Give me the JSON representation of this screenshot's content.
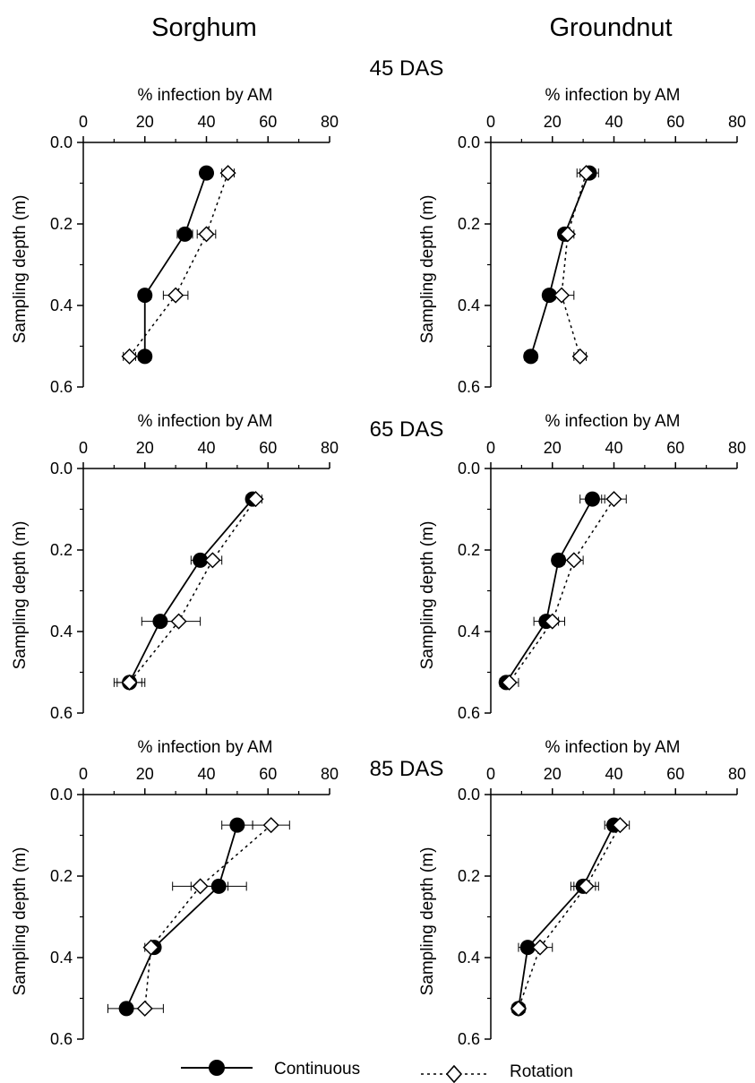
{
  "figure": {
    "col_titles": [
      "Sorghum",
      "Groundnut"
    ],
    "row_labels": [
      "45 DAS",
      "65 DAS",
      "85 DAS"
    ],
    "legend": {
      "continuous": "Continuous",
      "rotation": "Rotation"
    }
  },
  "chart_data": [
    {
      "type": "line",
      "crop": "Sorghum",
      "stage": "45 DAS",
      "xlabel": "% infection by AM",
      "ylabel": "Sampling depth (m)",
      "xlim": [
        0,
        80
      ],
      "ylim": [
        0.6,
        0.0
      ],
      "xticks": [
        "0",
        "20",
        "40",
        "60",
        "80"
      ],
      "yticks": [
        "0.0",
        "0.2",
        "0.4",
        "0.6"
      ],
      "depth": [
        0.075,
        0.225,
        0.375,
        0.525
      ],
      "series": [
        {
          "name": "Continuous",
          "x": [
            40,
            33,
            20,
            20
          ],
          "err": [
            1.5,
            2.5,
            2,
            2
          ]
        },
        {
          "name": "Rotation",
          "x": [
            47,
            40,
            30,
            15
          ],
          "err": [
            2,
            3,
            4,
            2
          ]
        }
      ]
    },
    {
      "type": "line",
      "crop": "Groundnut",
      "stage": "45 DAS",
      "xlabel": "% infection by AM",
      "ylabel": "Sampling depth (m)",
      "xlim": [
        0,
        80
      ],
      "ylim": [
        0.6,
        0.0
      ],
      "xticks": [
        "0",
        "20",
        "40",
        "60",
        "80"
      ],
      "yticks": [
        "0.0",
        "0.2",
        "0.4",
        "0.6"
      ],
      "depth": [
        0.075,
        0.225,
        0.375,
        0.525
      ],
      "series": [
        {
          "name": "Continuous",
          "x": [
            32,
            24,
            19,
            13
          ],
          "err": [
            3,
            2,
            2,
            2
          ]
        },
        {
          "name": "Rotation",
          "x": [
            31,
            25,
            23,
            29
          ],
          "err": [
            3,
            2,
            4,
            2
          ]
        }
      ]
    },
    {
      "type": "line",
      "crop": "Sorghum",
      "stage": "65 DAS",
      "xlabel": "% infection by AM",
      "ylabel": "Sampling depth (m)",
      "xlim": [
        0,
        80
      ],
      "ylim": [
        0.6,
        0.0
      ],
      "xticks": [
        "0",
        "20",
        "40",
        "60",
        "80"
      ],
      "yticks": [
        "0.0",
        "0.2",
        "0.4",
        "0.6"
      ],
      "depth": [
        0.075,
        0.225,
        0.375,
        0.525
      ],
      "series": [
        {
          "name": "Continuous",
          "x": [
            55,
            38,
            25,
            15
          ],
          "err": [
            2,
            3,
            6,
            5
          ]
        },
        {
          "name": "Rotation",
          "x": [
            56,
            42,
            31,
            15
          ],
          "err": [
            2,
            3,
            7,
            4
          ]
        }
      ]
    },
    {
      "type": "line",
      "crop": "Groundnut",
      "stage": "65 DAS",
      "xlabel": "% infection by AM",
      "ylabel": "Sampling depth (m)",
      "xlim": [
        0,
        80
      ],
      "ylim": [
        0.6,
        0.0
      ],
      "xticks": [
        "0",
        "20",
        "40",
        "60",
        "80"
      ],
      "yticks": [
        "0.0",
        "0.2",
        "0.4",
        "0.6"
      ],
      "depth": [
        0.075,
        0.225,
        0.375,
        0.525
      ],
      "series": [
        {
          "name": "Continuous",
          "x": [
            33,
            22,
            18,
            5
          ],
          "err": [
            4,
            2,
            4,
            2
          ]
        },
        {
          "name": "Rotation",
          "x": [
            40,
            27,
            20,
            6
          ],
          "err": [
            4,
            3,
            4,
            3
          ]
        }
      ]
    },
    {
      "type": "line",
      "crop": "Sorghum",
      "stage": "85 DAS",
      "xlabel": "% infection by AM",
      "ylabel": "Sampling depth (m)",
      "xlim": [
        0,
        80
      ],
      "ylim": [
        0.6,
        0.0
      ],
      "xticks": [
        "0",
        "20",
        "40",
        "60",
        "80"
      ],
      "yticks": [
        "0.0",
        "0.2",
        "0.4",
        "0.6"
      ],
      "depth": [
        0.075,
        0.225,
        0.375,
        0.525
      ],
      "series": [
        {
          "name": "Continuous",
          "x": [
            50,
            44,
            23,
            14
          ],
          "err": [
            5,
            9,
            2,
            6
          ]
        },
        {
          "name": "Rotation",
          "x": [
            61,
            38,
            22,
            20
          ],
          "err": [
            6,
            9,
            2,
            6
          ]
        }
      ]
    },
    {
      "type": "line",
      "crop": "Groundnut",
      "stage": "85 DAS",
      "xlabel": "% infection by AM",
      "ylabel": "Sampling depth (m)",
      "xlim": [
        0,
        80
      ],
      "ylim": [
        0.6,
        0.0
      ],
      "xticks": [
        "0",
        "20",
        "40",
        "60",
        "80"
      ],
      "yticks": [
        "0.0",
        "0.2",
        "0.4",
        "0.6"
      ],
      "depth": [
        0.075,
        0.225,
        0.375,
        0.525
      ],
      "series": [
        {
          "name": "Continuous",
          "x": [
            40,
            30,
            12,
            9
          ],
          "err": [
            3,
            4,
            3,
            2
          ]
        },
        {
          "name": "Rotation",
          "x": [
            42,
            31,
            16,
            9
          ],
          "err": [
            3,
            4,
            4,
            2
          ]
        }
      ]
    }
  ]
}
